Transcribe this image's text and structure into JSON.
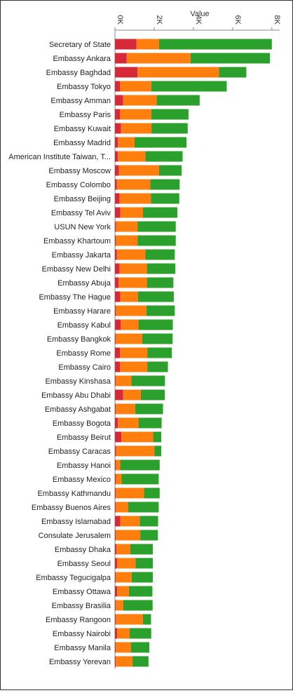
{
  "chart_data": {
    "type": "bar",
    "orientation": "horizontal",
    "stacked": true,
    "title": "",
    "xlabel": "Value",
    "ylabel": "",
    "xlim": [
      0,
      8400
    ],
    "x_ticks": [
      0,
      2000,
      4000,
      6000,
      8000
    ],
    "x_tick_labels": [
      "0K",
      "2K",
      "4K",
      "6K",
      "8K"
    ],
    "grid": false,
    "legend": "none",
    "colors": [
      "#d62a3a",
      "#ff7f0e",
      "#2ca02c"
    ],
    "categories": [
      "Secretary of State",
      "Embassy Ankara",
      "Embassy Baghdad",
      "Embassy Tokyo",
      "Embassy Amman",
      "Embassy Paris",
      "Embassy Kuwait",
      "Embassy Madrid",
      "American Institute Taiwan, T...",
      "Embassy Moscow",
      "Embassy Colombo",
      "Embassy Beijing",
      "Embassy Tel Aviv",
      "USUN New York",
      "Embassy Khartoum",
      "Embassy Jakarta",
      "Embassy New Delhi",
      "Embassy Abuja",
      "Embassy The Hague",
      "Embassy Harare",
      "Embassy Kabul",
      "Embassy Bangkok",
      "Embassy Rome",
      "Embassy Cairo",
      "Embassy Kinshasa",
      "Embassy Abu Dhabi",
      "Embassy Ashgabat",
      "Embassy Bogota",
      "Embassy Beirut",
      "Embassy Caracas",
      "Embassy Hanoi",
      "Embassy Mexico",
      "Embassy Kathmandu",
      "Embassy Buenos Aires",
      "Embassy Islamabad",
      "Consulate Jerusalem",
      "Embassy Dhaka",
      "Embassy Seoul",
      "Embassy Tegucigalpa",
      "Embassy Ottawa",
      "Embassy Brasilia",
      "Embassy Rangoon",
      "Embassy Nairobi",
      "Embassy Manila",
      "Embassy Yerevan"
    ],
    "series": [
      {
        "values": [
          1100,
          600,
          1150,
          250,
          420,
          250,
          310,
          150,
          150,
          200,
          100,
          230,
          280,
          50,
          50,
          100,
          230,
          180,
          270,
          50,
          300,
          40,
          250,
          250,
          40,
          420,
          40,
          150,
          330,
          60,
          50,
          50,
          40,
          40,
          270,
          40,
          80,
          110,
          40,
          110,
          40,
          40,
          110,
          40,
          40
        ]
      },
      {
        "values": [
          1150,
          3250,
          4150,
          1600,
          1700,
          1600,
          1550,
          850,
          1400,
          2050,
          1700,
          1600,
          1150,
          1100,
          1100,
          1450,
          1400,
          1450,
          900,
          1550,
          900,
          1350,
          1400,
          1400,
          800,
          900,
          990,
          1050,
          1620,
          1950,
          220,
          290,
          1440,
          630,
          990,
          1250,
          700,
          940,
          810,
          600,
          380,
          1380,
          630,
          770,
          850
        ]
      },
      {
        "values": [
          5750,
          4050,
          1400,
          3850,
          2200,
          1900,
          1850,
          2650,
          1900,
          1150,
          1500,
          1450,
          1750,
          1950,
          1950,
          1500,
          1450,
          1350,
          1830,
          1450,
          1750,
          1550,
          1250,
          1050,
          1710,
          1220,
          1420,
          1180,
          410,
          350,
          2010,
          1890,
          800,
          1560,
          940,
          900,
          1150,
          880,
          1080,
          1200,
          1500,
          420,
          1110,
          940,
          820
        ]
      }
    ]
  }
}
